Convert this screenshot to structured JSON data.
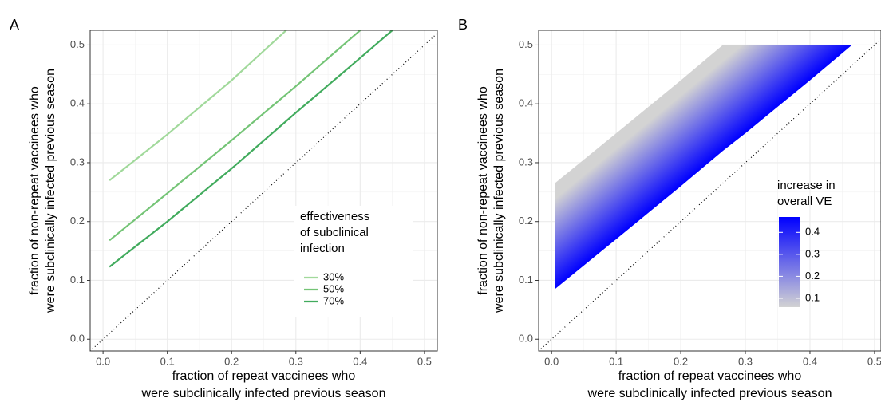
{
  "chart_data": [
    {
      "type": "line",
      "panel": "A",
      "x_label": [
        "fraction of repeat vaccinees who",
        "were subclinically infected previous season"
      ],
      "y_label": [
        "fraction of non-repeat vaccinees who",
        "were subclinically infected previous season"
      ],
      "xlim": [
        -0.02,
        0.52
      ],
      "ylim": [
        -0.02,
        0.525
      ],
      "xticks": [
        {
          "value": 0,
          "label": "0.0"
        },
        0.1,
        0.2,
        0.3,
        0.4,
        0.5
      ],
      "yticks": [
        {
          "value": 0,
          "label": "0.0"
        },
        0.1,
        0.2,
        0.3,
        0.4,
        0.5
      ],
      "grid": true,
      "identity_line": true,
      "legend_title": [
        "effectiveness",
        "of  subclinical",
        "infection"
      ],
      "series": [
        {
          "name": "30%",
          "color": "#a1d99b",
          "x": [
            0.01,
            0.1,
            0.2,
            0.285
          ],
          "values": [
            0.27,
            0.348,
            0.44,
            0.525
          ]
        },
        {
          "name": "50%",
          "color": "#74c476",
          "x": [
            0.01,
            0.1,
            0.2,
            0.3,
            0.4
          ],
          "values": [
            0.168,
            0.248,
            0.338,
            0.43,
            0.525
          ]
        },
        {
          "name": "70%",
          "color": "#41ab5d",
          "x": [
            0.01,
            0.1,
            0.2,
            0.3,
            0.4,
            0.45
          ],
          "values": [
            0.123,
            0.2,
            0.29,
            0.385,
            0.478,
            0.525
          ]
        }
      ]
    },
    {
      "type": "region",
      "panel": "B",
      "x_label": [
        "fraction of repeat vaccinees who",
        "were subclinically infected previous season"
      ],
      "y_label": [
        "fraction of non-repeat vaccinees who",
        "were subclinically infected previous season"
      ],
      "xlim": [
        -0.02,
        0.51
      ],
      "ylim": [
        -0.02,
        0.525
      ],
      "xticks": [
        {
          "value": 0,
          "label": "0.0"
        },
        0.1,
        0.2,
        0.3,
        0.4,
        0.5
      ],
      "yticks": [
        {
          "value": 0,
          "label": "0.0"
        },
        0.1,
        0.2,
        0.3,
        0.4,
        0.5
      ],
      "grid": true,
      "identity_line": true,
      "x": [
        0.005,
        0.1,
        0.2,
        0.265,
        0.3,
        0.4,
        0.465
      ],
      "upper": [
        0.265,
        0.35,
        0.44,
        0.5,
        0.5,
        0.5,
        0.5
      ],
      "lower": [
        0.085,
        0.17,
        0.26,
        0.32,
        0.35,
        0.44,
        0.5
      ],
      "legend_title": [
        "increase in",
        "overall VE"
      ],
      "colorbar": {
        "low_color": "#d3d3d3",
        "high_color": "#0000ff",
        "range": [
          0.06,
          0.47
        ],
        "ticks": [
          0.1,
          0.2,
          0.3,
          0.4
        ]
      }
    }
  ]
}
